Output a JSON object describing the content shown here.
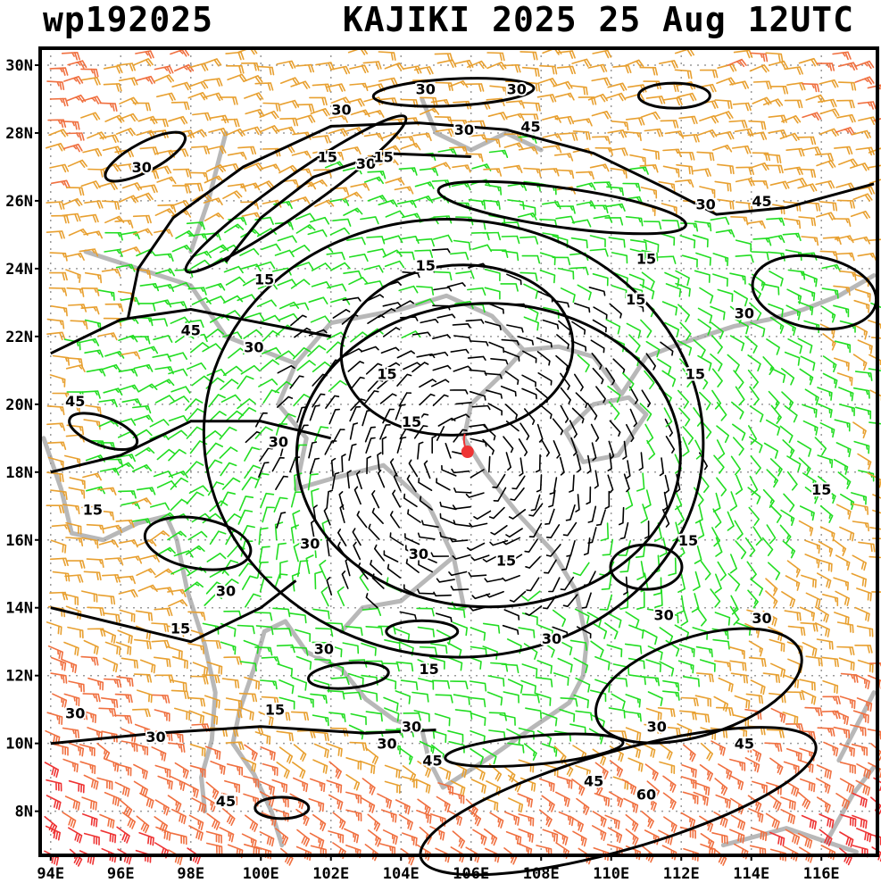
{
  "header": {
    "storm_id": "wp192025",
    "storm_title": "KAJIKI 2025 25 Aug 12UTC"
  },
  "axes": {
    "lat_labels": [
      "30N",
      "28N",
      "26N",
      "24N",
      "22N",
      "20N",
      "18N",
      "16N",
      "14N",
      "12N",
      "10N",
      "8N"
    ],
    "lon_labels": [
      "94E",
      "96E",
      "98E",
      "100E",
      "102E",
      "104E",
      "106E",
      "108E",
      "110E",
      "112E",
      "114E",
      "116E"
    ],
    "lat_values": [
      30,
      28,
      26,
      24,
      22,
      20,
      18,
      16,
      14,
      12,
      10,
      8
    ],
    "lon_values": [
      94,
      96,
      98,
      100,
      102,
      104,
      106,
      108,
      110,
      112,
      114,
      116
    ],
    "lat_range": [
      6.7,
      30.5
    ],
    "lon_range": [
      93.7,
      117.6
    ],
    "gridlines": true
  },
  "storm_center": {
    "lon": 105.9,
    "lat": 18.6,
    "color": "#ee3333"
  },
  "contour_levels_kt": [
    15,
    30,
    45,
    60
  ],
  "contour_labels": [
    {
      "text": "30",
      "lon": 104.7,
      "lat": 29.3
    },
    {
      "text": "30",
      "lon": 107.3,
      "lat": 29.3
    },
    {
      "text": "30",
      "lon": 102.3,
      "lat": 28.7
    },
    {
      "text": "30",
      "lon": 105.8,
      "lat": 28.1
    },
    {
      "text": "45",
      "lon": 107.7,
      "lat": 28.2
    },
    {
      "text": "30",
      "lon": 96.6,
      "lat": 27.0
    },
    {
      "text": "15",
      "lon": 101.9,
      "lat": 27.3
    },
    {
      "text": "30",
      "lon": 103.0,
      "lat": 27.1
    },
    {
      "text": "15",
      "lon": 103.5,
      "lat": 27.3
    },
    {
      "text": "30",
      "lon": 112.7,
      "lat": 25.9
    },
    {
      "text": "45",
      "lon": 114.3,
      "lat": 26.0
    },
    {
      "text": "15",
      "lon": 111.0,
      "lat": 24.3
    },
    {
      "text": "15",
      "lon": 104.7,
      "lat": 24.1
    },
    {
      "text": "15",
      "lon": 100.1,
      "lat": 23.7
    },
    {
      "text": "15",
      "lon": 110.7,
      "lat": 23.1
    },
    {
      "text": "30",
      "lon": 113.8,
      "lat": 22.7
    },
    {
      "text": "45",
      "lon": 98.0,
      "lat": 22.2
    },
    {
      "text": "30",
      "lon": 99.8,
      "lat": 21.7
    },
    {
      "text": "15",
      "lon": 103.6,
      "lat": 20.9
    },
    {
      "text": "15",
      "lon": 112.4,
      "lat": 20.9
    },
    {
      "text": "45",
      "lon": 94.7,
      "lat": 20.1
    },
    {
      "text": "15",
      "lon": 104.3,
      "lat": 19.5
    },
    {
      "text": "30",
      "lon": 100.5,
      "lat": 18.9
    },
    {
      "text": "15",
      "lon": 116.0,
      "lat": 17.5
    },
    {
      "text": "15",
      "lon": 95.2,
      "lat": 16.9
    },
    {
      "text": "15",
      "lon": 112.2,
      "lat": 16.0
    },
    {
      "text": "30",
      "lon": 101.4,
      "lat": 15.9
    },
    {
      "text": "30",
      "lon": 104.5,
      "lat": 15.6
    },
    {
      "text": "15",
      "lon": 107.0,
      "lat": 15.4
    },
    {
      "text": "30",
      "lon": 99.0,
      "lat": 14.5
    },
    {
      "text": "15",
      "lon": 97.7,
      "lat": 13.4
    },
    {
      "text": "30",
      "lon": 111.5,
      "lat": 13.8
    },
    {
      "text": "30",
      "lon": 114.3,
      "lat": 13.7
    },
    {
      "text": "30",
      "lon": 101.8,
      "lat": 12.8
    },
    {
      "text": "30",
      "lon": 108.3,
      "lat": 13.1
    },
    {
      "text": "15",
      "lon": 104.8,
      "lat": 12.2
    },
    {
      "text": "30",
      "lon": 94.7,
      "lat": 10.9
    },
    {
      "text": "15",
      "lon": 100.4,
      "lat": 11.0
    },
    {
      "text": "30",
      "lon": 104.3,
      "lat": 10.5
    },
    {
      "text": "30",
      "lon": 111.3,
      "lat": 10.5
    },
    {
      "text": "30",
      "lon": 97.0,
      "lat": 10.2
    },
    {
      "text": "30",
      "lon": 103.6,
      "lat": 10.0
    },
    {
      "text": "45",
      "lon": 113.8,
      "lat": 10.0
    },
    {
      "text": "45",
      "lon": 104.9,
      "lat": 9.5
    },
    {
      "text": "45",
      "lon": 109.5,
      "lat": 8.9
    },
    {
      "text": "60",
      "lon": 111.0,
      "lat": 8.5
    },
    {
      "text": "45",
      "lon": 99.0,
      "lat": 8.3
    }
  ],
  "barb_colors": {
    "lt15": "#000000",
    "15_30": "#22dd22",
    "30_45": "#e8a030",
    "45_60": "#f07040",
    "ge60": "#ee3333"
  },
  "coast_color": "#b8b8b8"
}
